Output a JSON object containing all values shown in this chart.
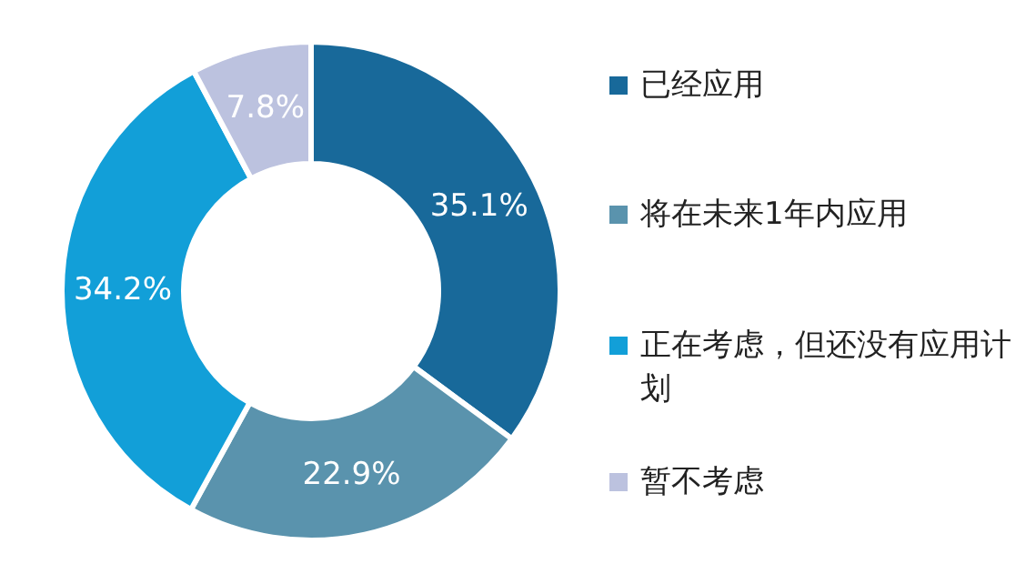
{
  "chart_data": {
    "type": "donut",
    "categories": [
      "已经应用",
      "将在未来1年内应用",
      "正在考虑，但还没有应用计划",
      "暂不考虑"
    ],
    "values": [
      35.1,
      22.9,
      34.2,
      7.8
    ],
    "value_labels": [
      "35.1%",
      "22.9%",
      "34.2%",
      "7.8%"
    ],
    "colors": [
      "#18699a",
      "#5a93ad",
      "#129fd8",
      "#bcc2df"
    ],
    "legend": "right"
  }
}
